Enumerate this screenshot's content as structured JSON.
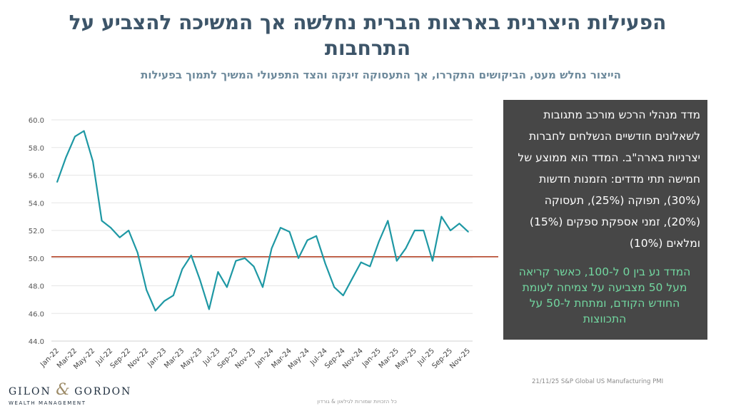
{
  "header": {
    "title": "הפעילות היצרנית בארצות הברית נחלשה אך המשיכה להצביע על התרחבות",
    "subtitle": "הייצור נחלש מעט, הביקושים התקררו, אך התעסוקה זינקה והצד התפעולי המשיך לתמוך בפעילות"
  },
  "chart_data": {
    "type": "line",
    "title": "",
    "xlabel": "",
    "ylabel": "",
    "ylim": [
      44,
      60
    ],
    "yticks": [
      "44.0",
      "46.0",
      "48.0",
      "50.0",
      "52.0",
      "54.0",
      "56.0",
      "58.0",
      "60.0"
    ],
    "reference_line": 50.1,
    "x": [
      "Jan-22",
      "Feb-22",
      "Mar-22",
      "Apr-22",
      "May-22",
      "Jun-22",
      "Jul-22",
      "Aug-22",
      "Sep-22",
      "Oct-22",
      "Nov-22",
      "Dec-22",
      "Jan-23",
      "Feb-23",
      "Mar-23",
      "Apr-23",
      "May-23",
      "Jun-23",
      "Jul-23",
      "Aug-23",
      "Sep-23",
      "Oct-23",
      "Nov-23",
      "Dec-23",
      "Jan-24",
      "Feb-24",
      "Mar-24",
      "Apr-24",
      "May-24",
      "Jun-24",
      "Jul-24",
      "Aug-24",
      "Sep-24",
      "Oct-24",
      "Nov-24",
      "Dec-24",
      "Jan-25",
      "Feb-25",
      "Mar-25",
      "Apr-25",
      "May-25",
      "Jun-25",
      "Jul-25",
      "Aug-25",
      "Sep-25",
      "Oct-25",
      "Nov-25"
    ],
    "xtick_labels": [
      "Jan-22",
      "Mar-22",
      "May-22",
      "Jul-22",
      "Sep-22",
      "Nov-22",
      "Jan-23",
      "Mar-23",
      "May-23",
      "Jul-23",
      "Sep-23",
      "Nov-23",
      "Jan-24",
      "Mar-24",
      "May-24",
      "Jul-24",
      "Sep-24",
      "Nov-24",
      "Jan-25",
      "Mar-25",
      "May-25",
      "Jul-25",
      "Sep-25",
      "Nov-25"
    ],
    "series": [
      {
        "values": [
          55.5,
          57.3,
          58.8,
          59.2,
          57.0,
          52.7,
          52.2,
          51.5,
          52.0,
          50.4,
          47.7,
          46.2,
          46.9,
          47.3,
          49.2,
          50.2,
          48.4,
          46.3,
          49.0,
          47.9,
          49.8,
          50.0,
          49.4,
          47.9,
          50.7,
          52.2,
          51.9,
          50.0,
          51.3,
          51.6,
          49.6,
          47.9,
          47.3,
          48.5,
          49.7,
          49.4,
          51.2,
          52.7,
          49.8,
          50.7,
          52.0,
          52.0,
          49.8,
          53.0,
          52.0,
          52.5,
          51.9
        ],
        "color": "#1e98a4"
      }
    ],
    "reference_color": "#b5462a",
    "grid": true
  },
  "panel": {
    "text": "מדד מנהלי הרכש מורכב  מתגובות לשאלונים חודשיים הנשלחים לחברות יצרניות בארה\"ב. המדד הוא ממוצע של חמישה תתי מדדים: הזמנות חדשות (30%), תפוקה (25%), תעסוקה (20%), זמני אספקת ספקים (15%) ומלאים (10%)",
    "note": "המדד נע בין 0 ל-100, כאשר קריאה מעל 50 מצביעה על צמיחה לעומת החודש הקודם, ומתחת ל-50 על התכווצות"
  },
  "source": "21/11/25 S&P Global US Manufacturing PMI",
  "logo": {
    "left": "GILON",
    "amp": "&",
    "right": "GORDON",
    "sub": "WEALTH MANAGEMENT"
  },
  "footer": "כל הזכויות שמורות לגילאון & גורדון"
}
